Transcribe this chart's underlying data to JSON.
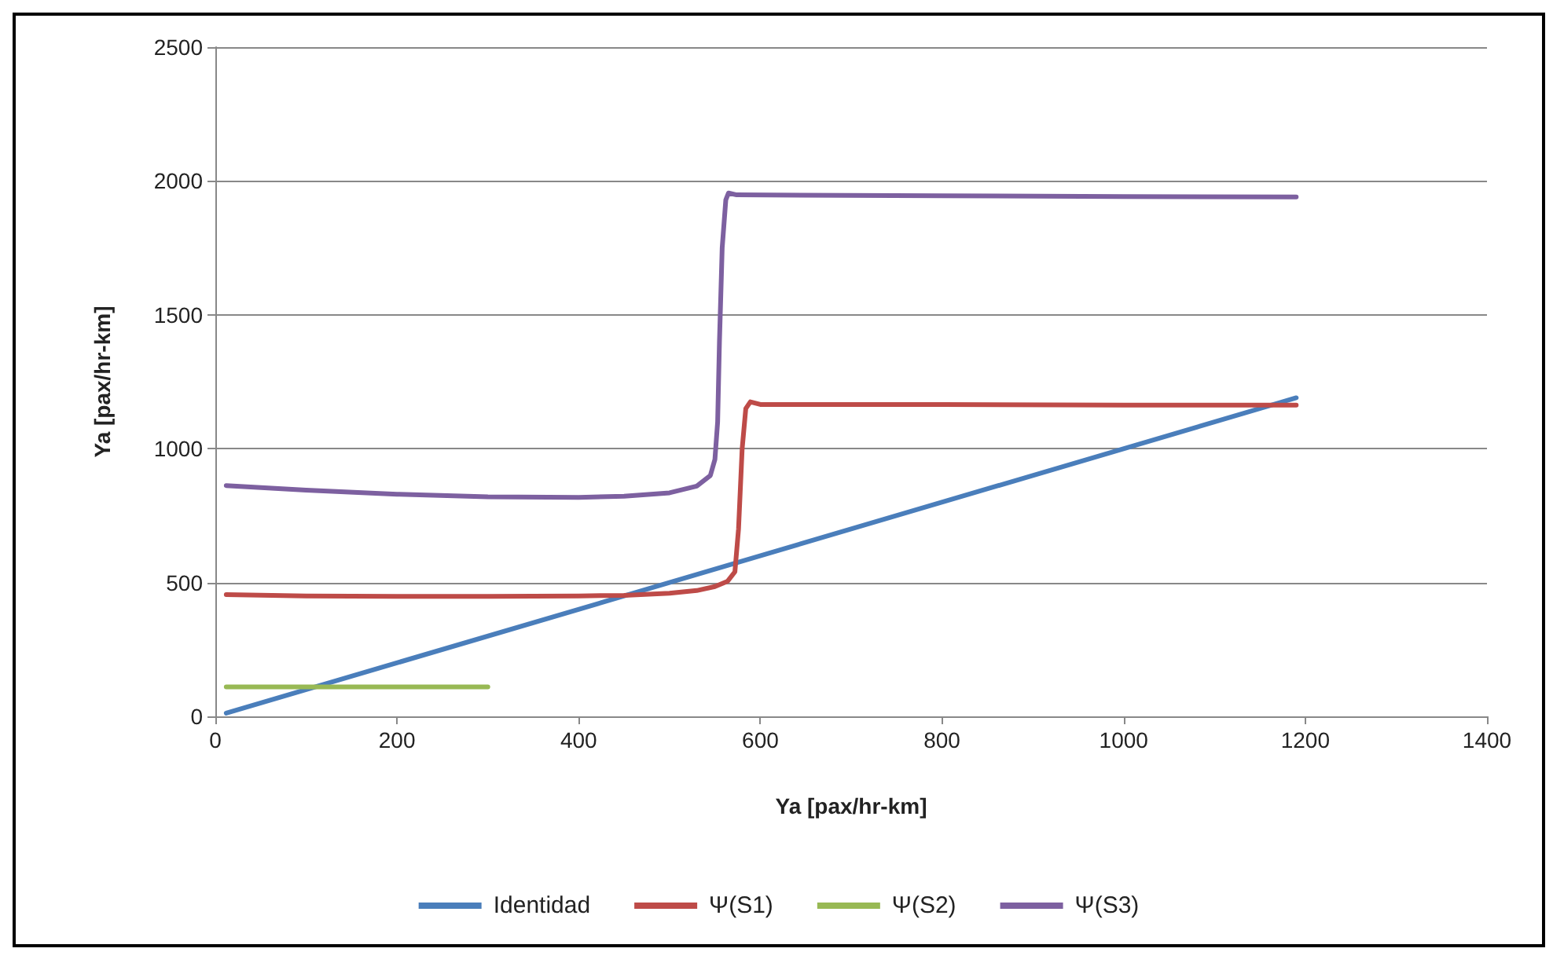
{
  "chart_data": {
    "type": "line",
    "xlabel": "Ya [pax/hr-km]",
    "ylabel": "Ya [pax/hr-km]",
    "xlim": [
      0,
      1400
    ],
    "xticks": [
      0,
      200,
      400,
      600,
      800,
      1000,
      1200,
      1400
    ],
    "ylim": [
      0,
      2500
    ],
    "yticks": [
      0,
      500,
      1000,
      1500,
      2000,
      2500
    ],
    "grid": "y",
    "legend": "bottom",
    "marker": "none",
    "line_style": "solid",
    "series": [
      {
        "name": "Identidad",
        "color": "#4a7ebb",
        "x": [
          12,
          1190
        ],
        "values": [
          12,
          1190
        ]
      },
      {
        "name": "Ψ(S1)",
        "color": "#be4b48",
        "x": [
          12,
          100,
          200,
          300,
          400,
          450,
          500,
          530,
          550,
          564,
          572,
          576,
          580,
          584,
          589,
          600,
          800,
          1000,
          1190
        ],
        "values": [
          455,
          450,
          448,
          448,
          450,
          452,
          460,
          470,
          485,
          505,
          540,
          700,
          1000,
          1150,
          1175,
          1165,
          1165,
          1163,
          1163
        ]
      },
      {
        "name": "Ψ(S2)",
        "color": "#98b954",
        "x": [
          12,
          300
        ],
        "values": [
          110,
          110
        ]
      },
      {
        "name": "Ψ(S3)",
        "color": "#7d60a0",
        "x": [
          12,
          100,
          200,
          300,
          400,
          450,
          500,
          530,
          545,
          550,
          553,
          555,
          558,
          562,
          565,
          574,
          800,
          1000,
          1190
        ],
        "values": [
          862,
          845,
          830,
          820,
          818,
          822,
          835,
          860,
          900,
          960,
          1100,
          1400,
          1750,
          1930,
          1955,
          1948,
          1945,
          1942,
          1940
        ]
      }
    ]
  }
}
